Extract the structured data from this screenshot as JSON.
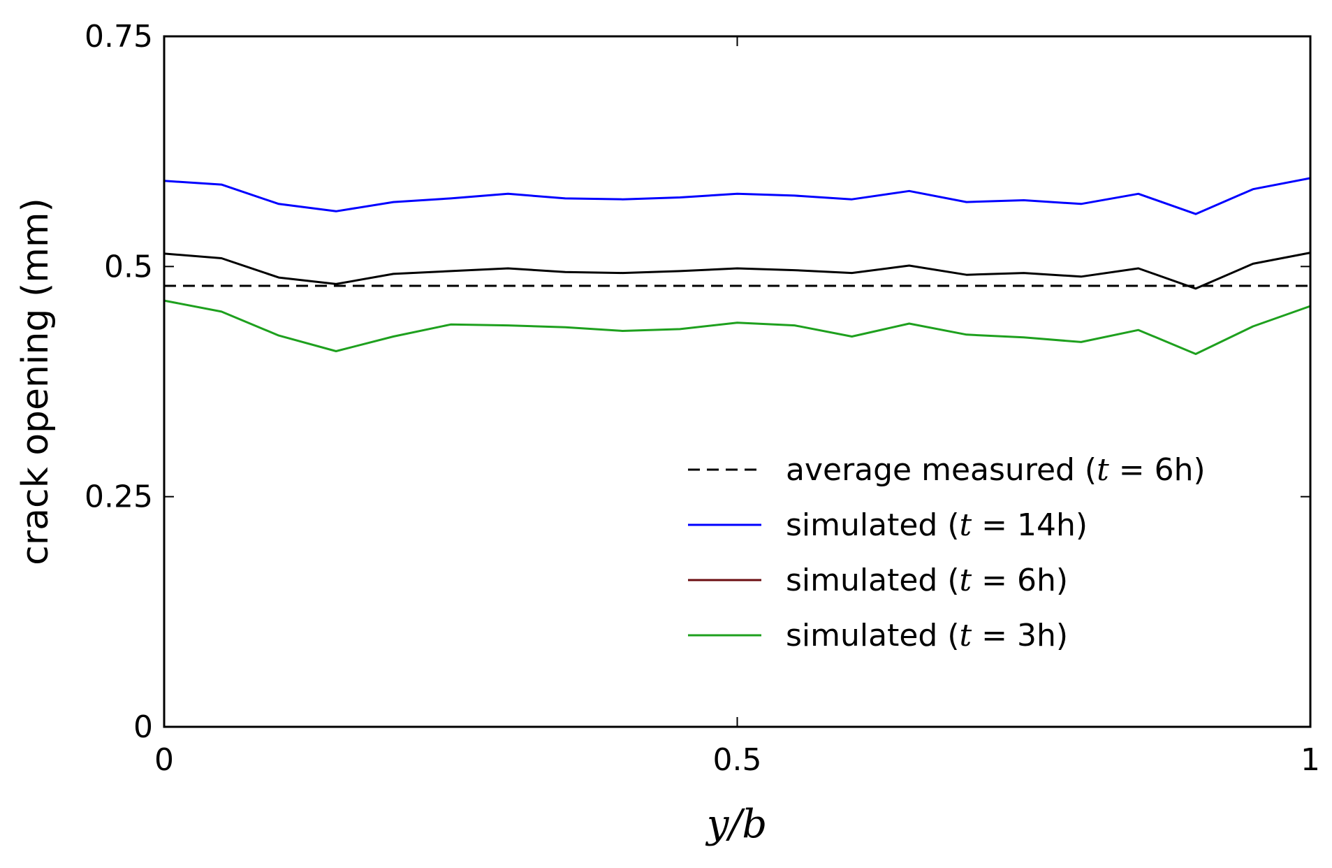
{
  "chart_data": {
    "type": "line",
    "title": "",
    "xlabel": "y/b",
    "ylabel": "crack opening (mm)",
    "xlim": [
      0,
      1
    ],
    "ylim": [
      0,
      0.75
    ],
    "x_ticks": [
      0,
      0.5,
      1
    ],
    "x_tick_labels": [
      "0",
      "0.5",
      "1"
    ],
    "y_ticks": [
      0,
      0.25,
      0.5,
      0.75
    ],
    "y_tick_labels": [
      "0",
      "0.25",
      "0.5",
      "0.75"
    ],
    "grid": false,
    "legend_position": "lower-right",
    "x": [
      0,
      0.05,
      0.1,
      0.15,
      0.2,
      0.25,
      0.3,
      0.35,
      0.4,
      0.45,
      0.5,
      0.55,
      0.6,
      0.65,
      0.7,
      0.75,
      0.8,
      0.85,
      0.9,
      0.95,
      1.0
    ],
    "series": [
      {
        "name": "average measured",
        "legend": {
          "prefix": "average measured (",
          "var": "t",
          "suffix": " = 6h)"
        },
        "color": "#000000",
        "style": "dashed",
        "values": [
          0.479,
          0.479,
          0.479,
          0.479,
          0.479,
          0.479,
          0.479,
          0.479,
          0.479,
          0.479,
          0.479,
          0.479,
          0.479,
          0.479,
          0.479,
          0.479,
          0.479,
          0.479,
          0.479,
          0.479,
          0.479
        ]
      },
      {
        "name": "simulated t=14h",
        "legend": {
          "prefix": "simulated (",
          "var": "t",
          "suffix": " = 14h)"
        },
        "color": "#0000ff",
        "style": "solid",
        "values": [
          0.593,
          0.589,
          0.568,
          0.56,
          0.57,
          0.574,
          0.579,
          0.574,
          0.573,
          0.575,
          0.579,
          0.577,
          0.573,
          0.582,
          0.57,
          0.572,
          0.568,
          0.579,
          0.557,
          0.584,
          0.596
        ]
      },
      {
        "name": "simulated t=6h",
        "legend": {
          "prefix": "simulated (",
          "var": "t",
          "suffix": " = 6h)"
        },
        "color": "#000000",
        "legend_color": "#6b0d10",
        "style": "solid",
        "values": [
          0.514,
          0.509,
          0.488,
          0.481,
          0.492,
          0.495,
          0.498,
          0.494,
          0.493,
          0.495,
          0.498,
          0.496,
          0.493,
          0.501,
          0.491,
          0.493,
          0.489,
          0.498,
          0.476,
          0.503,
          0.515
        ]
      },
      {
        "name": "simulated t=3h",
        "legend": {
          "prefix": "simulated (",
          "var": "t",
          "suffix": " = 3h)"
        },
        "color": "#1ea01e",
        "style": "solid",
        "values": [
          0.463,
          0.451,
          0.425,
          0.408,
          0.424,
          0.437,
          0.436,
          0.434,
          0.43,
          0.432,
          0.439,
          0.436,
          0.424,
          0.438,
          0.426,
          0.423,
          0.418,
          0.431,
          0.405,
          0.435,
          0.457
        ]
      }
    ]
  }
}
